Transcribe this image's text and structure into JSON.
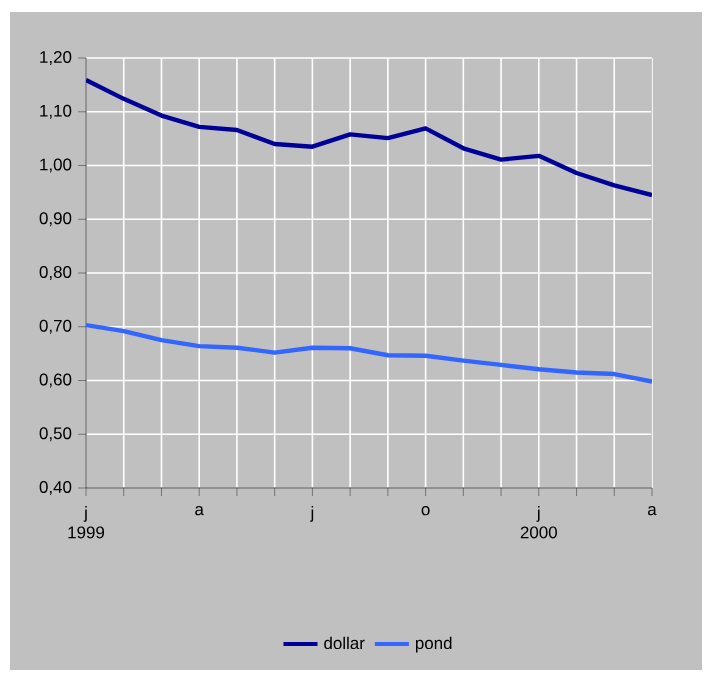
{
  "chart_data": {
    "type": "line",
    "categories": [
      "j 1999",
      null,
      null,
      "a",
      null,
      null,
      "j",
      null,
      null,
      "o",
      null,
      null,
      "j 2000",
      null,
      null,
      "a"
    ],
    "series": [
      {
        "name": "dollar",
        "color": "#000099",
        "values": [
          1.159,
          1.124,
          1.093,
          1.072,
          1.066,
          1.04,
          1.035,
          1.058,
          1.051,
          1.069,
          1.032,
          1.011,
          1.018,
          0.986,
          0.963,
          0.945
        ]
      },
      {
        "name": "pond",
        "color": "#3366ff",
        "values": [
          0.703,
          0.692,
          0.675,
          0.664,
          0.661,
          0.652,
          0.661,
          0.66,
          0.647,
          0.646,
          0.637,
          0.629,
          0.621,
          0.615,
          0.612,
          0.598
        ]
      }
    ],
    "ylim": [
      0.4,
      1.2
    ],
    "yticks": [
      {
        "value": 0.4,
        "label": "0,40"
      },
      {
        "value": 0.5,
        "label": "0,50"
      },
      {
        "value": 0.6,
        "label": "0,60"
      },
      {
        "value": 0.7,
        "label": "0,70"
      },
      {
        "value": 0.8,
        "label": "0,80"
      },
      {
        "value": 0.9,
        "label": "0,90"
      },
      {
        "value": 1.0,
        "label": "1,00"
      },
      {
        "value": 1.1,
        "label": "1,10"
      },
      {
        "value": 1.2,
        "label": "1,20"
      }
    ],
    "grid": true,
    "legend": "bottom",
    "marker": "none",
    "line_style": "solid"
  }
}
